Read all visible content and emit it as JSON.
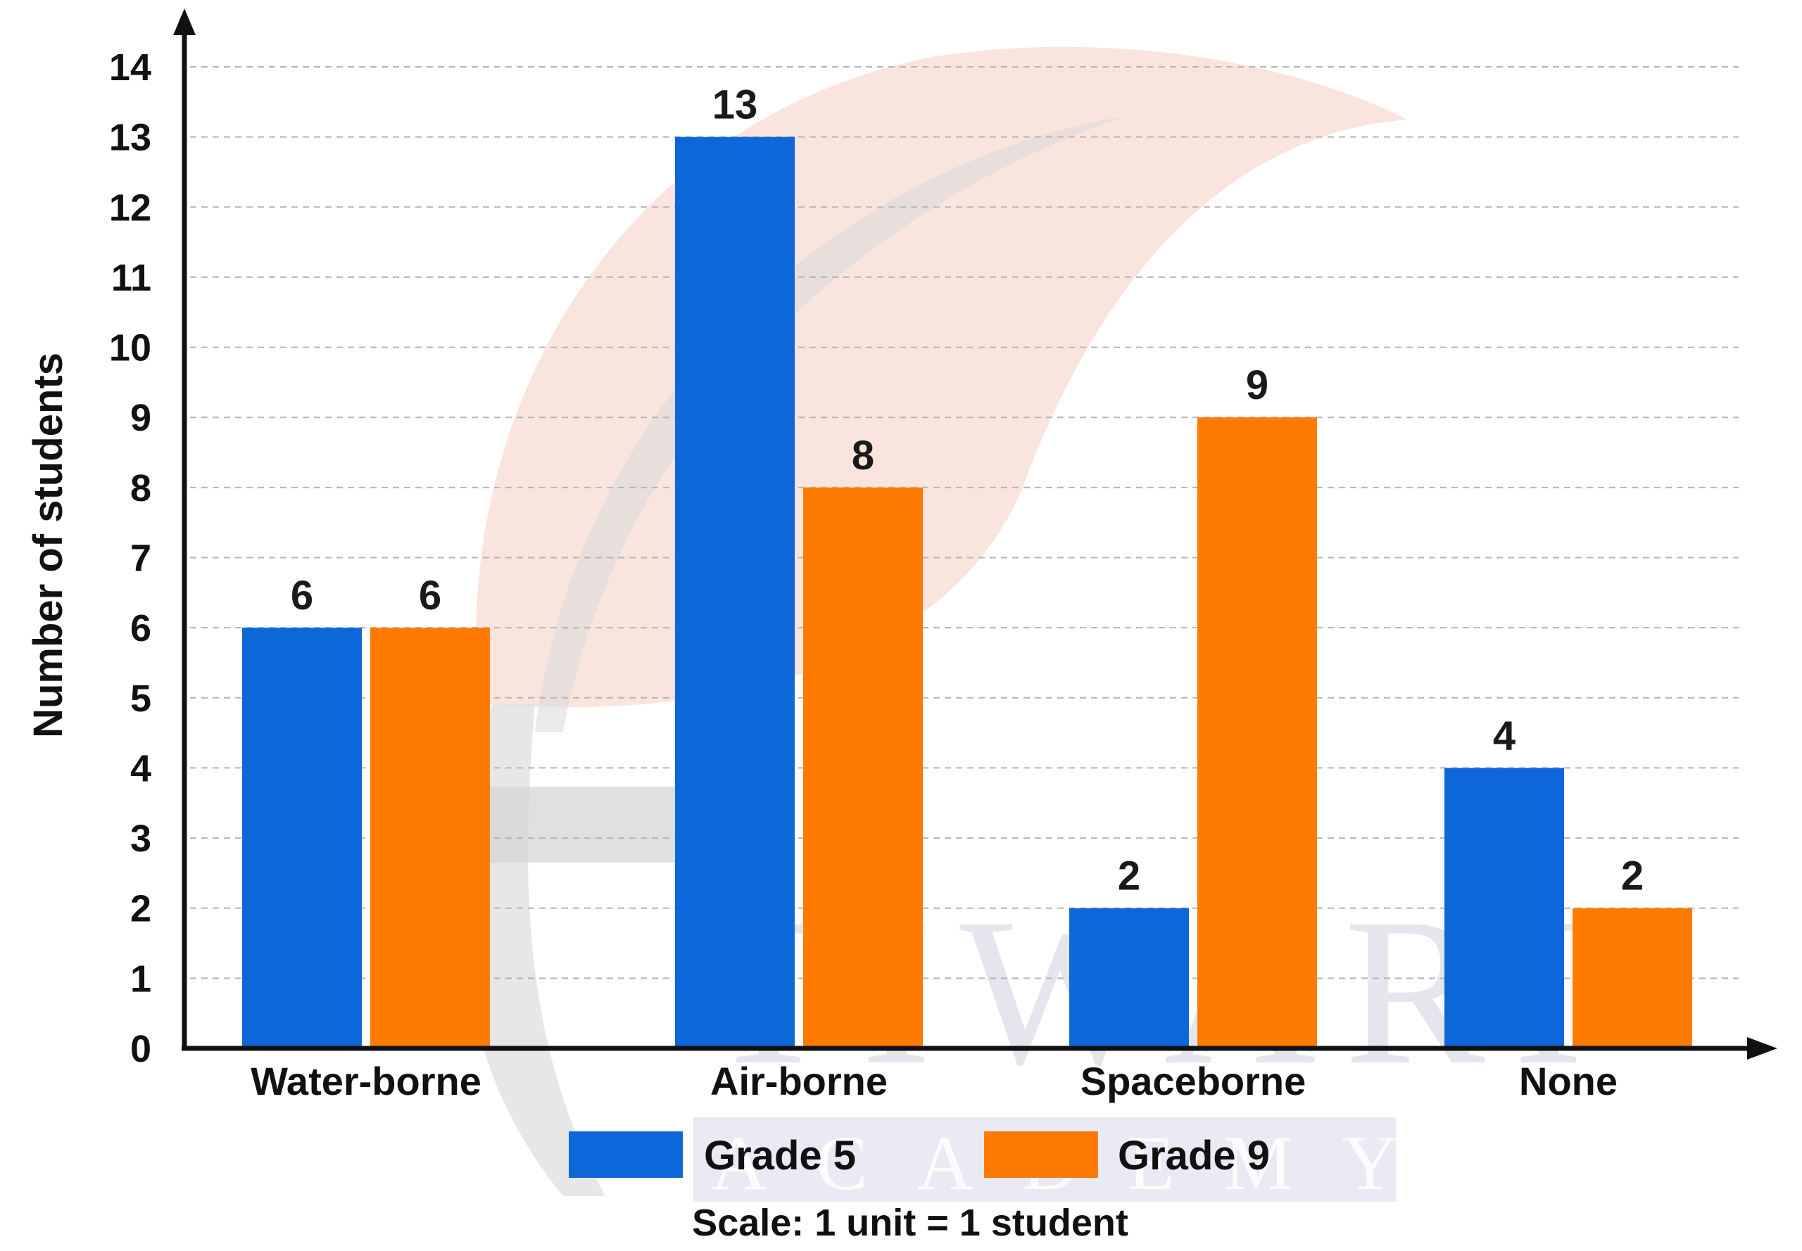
{
  "colors": {
    "grade5": "#0d67d8",
    "grade9": "#ff7a00",
    "axis": "#111111",
    "grid": "#b5b5b5"
  },
  "watermark": {
    "brand": "TIWARI",
    "subtitle": "ACADEMY"
  },
  "chart_data": {
    "type": "bar",
    "categories": [
      "Water-borne",
      "Air-borne",
      "Spaceborne",
      "None"
    ],
    "series": [
      {
        "name": "Grade 5",
        "values": [
          6,
          13,
          2,
          4
        ]
      },
      {
        "name": "Grade 9",
        "values": [
          6,
          8,
          9,
          2
        ]
      }
    ],
    "ylabel": "Number of students",
    "xlabel": "",
    "ylim": [
      0,
      14
    ],
    "yticks": [
      0,
      1,
      2,
      3,
      4,
      5,
      6,
      7,
      8,
      9,
      10,
      11,
      12,
      13,
      14
    ],
    "grid": true,
    "legend": "bottom-center",
    "note": "Scale: 1 unit = 1 student"
  }
}
